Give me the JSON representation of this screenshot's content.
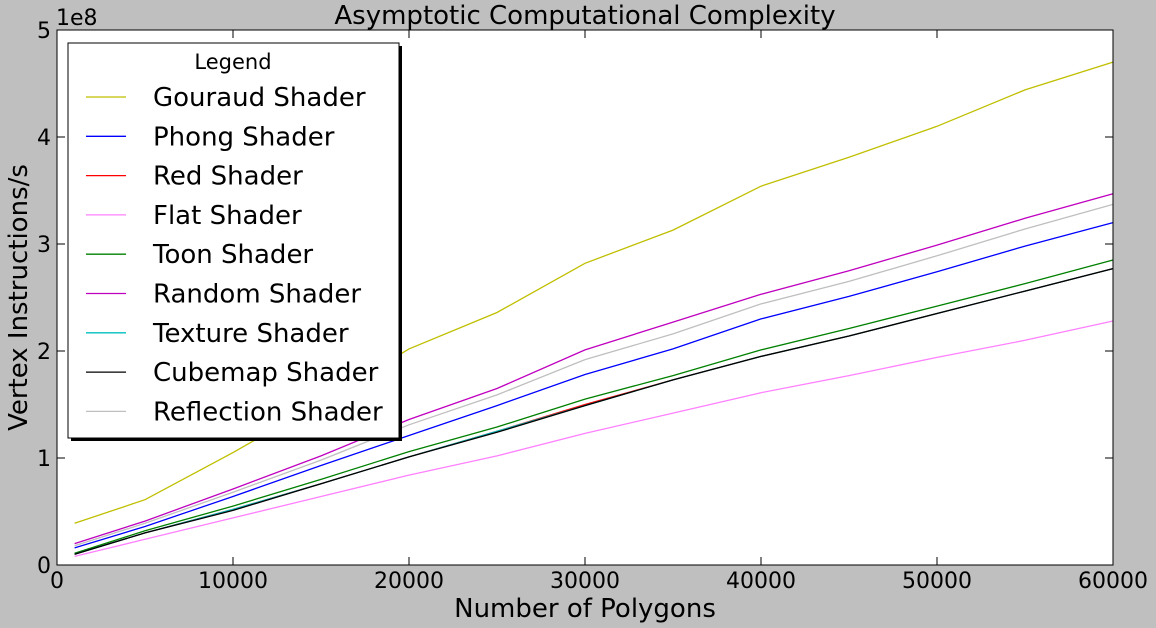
{
  "chart_data": {
    "type": "line",
    "title": "Asymptotic Computational Complexity",
    "xlabel": "Number of Polygons",
    "ylabel": "Vertex Instructions/s",
    "y_offset_label": "1e8",
    "xlim": [
      0,
      60000
    ],
    "ylim": [
      0,
      5
    ],
    "x_ticks": [
      "0",
      "10000",
      "20000",
      "30000",
      "40000",
      "50000",
      "60000"
    ],
    "y_ticks": [
      "0",
      "1",
      "2",
      "3",
      "4",
      "5"
    ],
    "grid": false,
    "legend_title": "Legend",
    "legend_position": "upper-left",
    "x": [
      1000,
      5000,
      10000,
      15000,
      20000,
      25000,
      30000,
      35000,
      40000,
      45000,
      50000,
      55000,
      60000
    ],
    "series": [
      {
        "name": "Gouraud Shader",
        "color": "#bfbf00",
        "values": [
          0.39,
          0.61,
          1.05,
          1.52,
          2.02,
          2.36,
          2.82,
          3.13,
          3.54,
          3.81,
          4.1,
          4.44,
          4.7
        ]
      },
      {
        "name": "Phong Shader",
        "color": "#0000ff",
        "values": [
          0.16,
          0.36,
          0.64,
          0.93,
          1.21,
          1.49,
          1.78,
          2.02,
          2.3,
          2.51,
          2.74,
          2.98,
          3.2
        ]
      },
      {
        "name": "Red Shader",
        "color": "#ff0000",
        "values": [
          0.1,
          0.3,
          0.52,
          0.76,
          1.01,
          1.25,
          1.5,
          1.73,
          1.95,
          2.14,
          2.35,
          2.56,
          2.77
        ]
      },
      {
        "name": "Flat Shader",
        "color": "#ff80ff",
        "values": [
          0.08,
          0.24,
          0.44,
          0.64,
          0.84,
          1.02,
          1.23,
          1.42,
          1.61,
          1.77,
          1.94,
          2.1,
          2.28
        ]
      },
      {
        "name": "Toon Shader",
        "color": "#008000",
        "values": [
          0.11,
          0.32,
          0.55,
          0.8,
          1.06,
          1.29,
          1.55,
          1.77,
          2.01,
          2.21,
          2.42,
          2.63,
          2.85
        ]
      },
      {
        "name": "Random Shader",
        "color": "#bf00bf",
        "values": [
          0.2,
          0.41,
          0.71,
          1.02,
          1.36,
          1.65,
          2.01,
          2.27,
          2.53,
          2.75,
          2.99,
          3.24,
          3.47
        ]
      },
      {
        "name": "Texture Shader",
        "color": "#00bfbf",
        "values": [
          0.1,
          0.3,
          0.52,
          0.76,
          1.01,
          1.25,
          1.49,
          1.73,
          1.95,
          2.14,
          2.35,
          2.56,
          2.77
        ]
      },
      {
        "name": "Cubemap Shader",
        "color": "#000000",
        "values": [
          0.1,
          0.3,
          0.51,
          0.76,
          1.01,
          1.24,
          1.49,
          1.73,
          1.95,
          2.14,
          2.35,
          2.56,
          2.77
        ]
      },
      {
        "name": "Reflection Shader",
        "color": "#bfbfbf",
        "values": [
          0.18,
          0.39,
          0.68,
          0.98,
          1.31,
          1.59,
          1.92,
          2.16,
          2.44,
          2.65,
          2.89,
          3.14,
          3.37
        ]
      }
    ]
  }
}
